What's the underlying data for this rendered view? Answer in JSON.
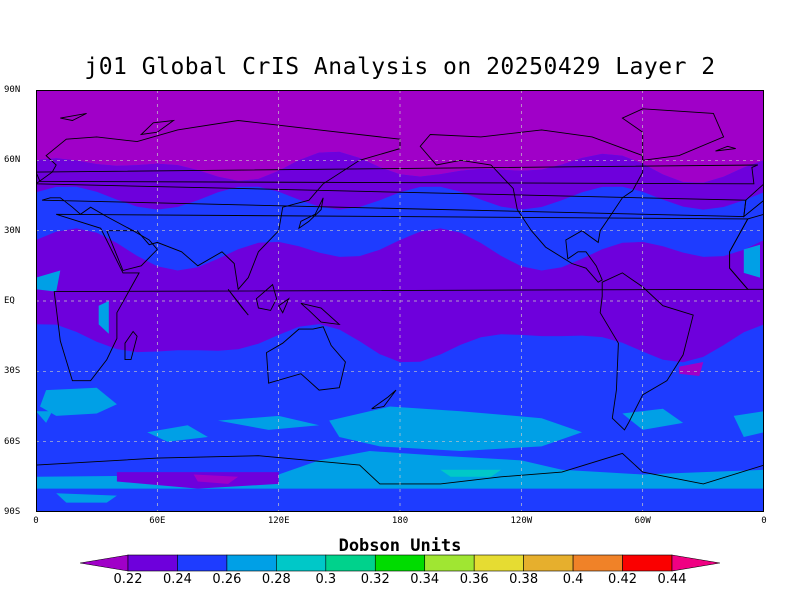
{
  "title": "j01 Global CrIS Analysis on 20250429 Layer 2",
  "axes": {
    "lat_ticks": [
      {
        "lat": 90,
        "label": "90N"
      },
      {
        "lat": 60,
        "label": "60N"
      },
      {
        "lat": 30,
        "label": "30N"
      },
      {
        "lat": 0,
        "label": "EQ"
      },
      {
        "lat": -30,
        "label": "30S"
      },
      {
        "lat": -60,
        "label": "60S"
      },
      {
        "lat": -90,
        "label": "90S"
      }
    ],
    "lon_ticks": [
      {
        "lon": 0,
        "label": "0"
      },
      {
        "lon": 60,
        "label": "60E"
      },
      {
        "lon": 120,
        "label": "120E"
      },
      {
        "lon": 180,
        "label": "180"
      },
      {
        "lon": 240,
        "label": "120W"
      },
      {
        "lon": 300,
        "label": "60W"
      },
      {
        "lon": 360,
        "label": "0"
      }
    ],
    "lon_range": [
      0,
      360
    ],
    "lat_range": [
      -90,
      90
    ],
    "grid": true
  },
  "colorbar": {
    "title": "Dobson Units",
    "levels": [
      "0.22",
      "0.24",
      "0.26",
      "0.28",
      "0.3",
      "0.32",
      "0.34",
      "0.36",
      "0.38",
      "0.4",
      "0.42",
      "0.44"
    ],
    "colors": [
      "#a000c8",
      "#6e00dc",
      "#1e3cff",
      "#00a0e6",
      "#00c8c8",
      "#00d28c",
      "#00dc00",
      "#a0e632",
      "#e6dc32",
      "#e6af2d",
      "#f08228",
      "#fa0000",
      "#f00082"
    ]
  },
  "colors": {
    "high_lat_band": "#a000c8",
    "tropical_band": "#6e00dc",
    "midlat_band": "#1e3cff",
    "southern_ocean_patch": "#00a0e6",
    "antarctic_spot": "#00c8c8",
    "land_outline": "#000000",
    "gridline": "#c8c8c8"
  }
}
